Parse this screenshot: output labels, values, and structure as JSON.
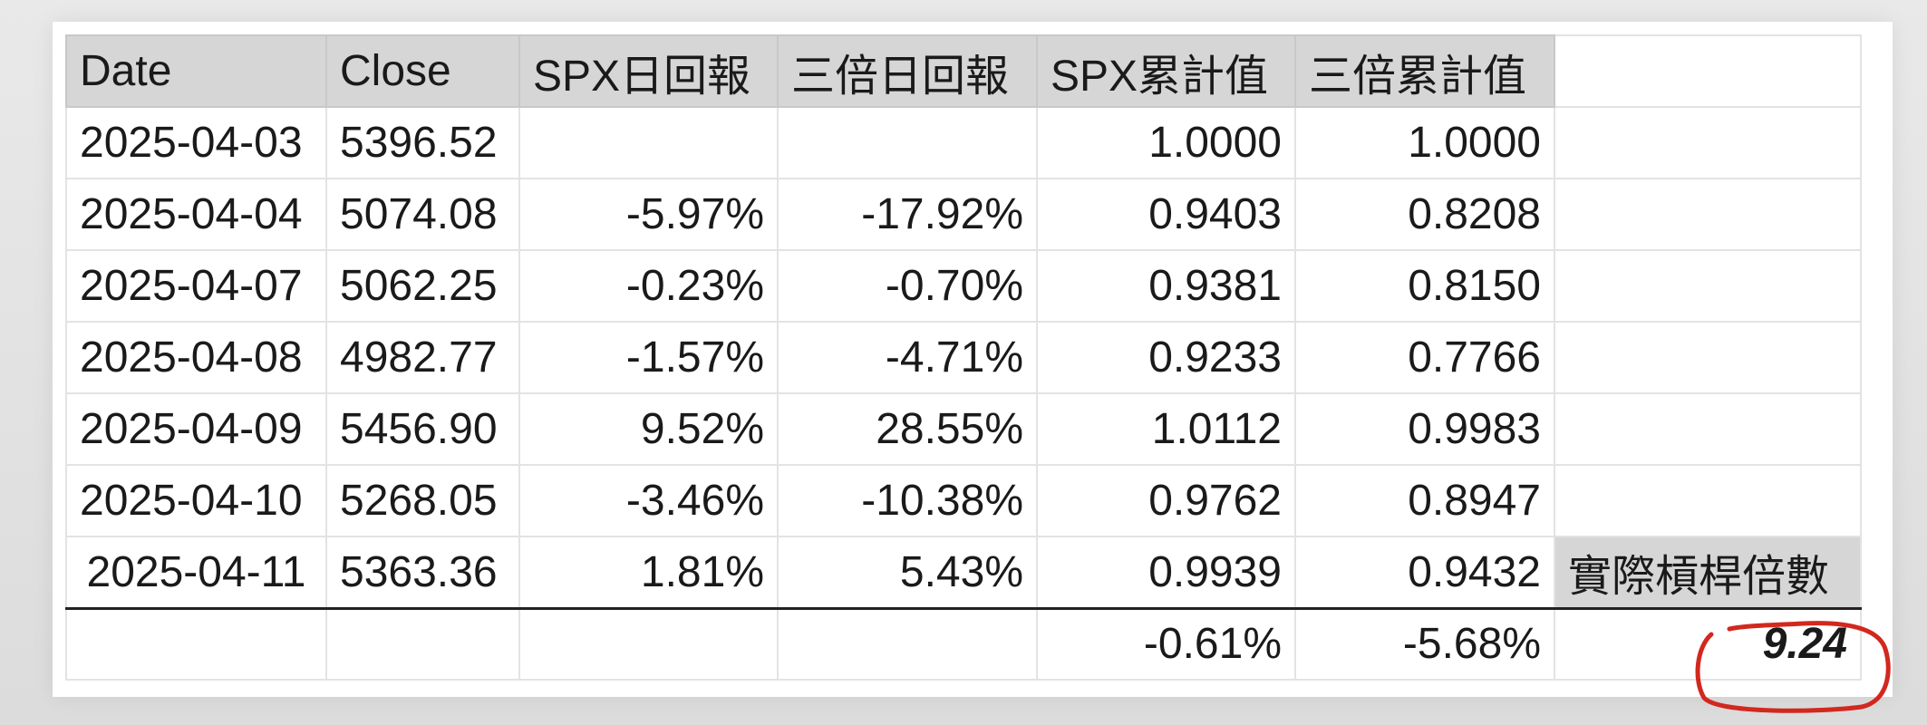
{
  "table": {
    "headers": [
      "Date",
      "Close",
      "SPX日回報",
      "三倍日回報",
      "SPX累計值",
      "三倍累計值",
      ""
    ],
    "rows": [
      {
        "date": "2025-04-03",
        "close": "5396.52",
        "spx_ret": "",
        "x3_ret": "",
        "spx_cum": "1.0000",
        "x3_cum": "1.0000",
        "extra": ""
      },
      {
        "date": "2025-04-04",
        "close": "5074.08",
        "spx_ret": "-5.97%",
        "x3_ret": "-17.92%",
        "spx_cum": "0.9403",
        "x3_cum": "0.8208",
        "extra": ""
      },
      {
        "date": "2025-04-07",
        "close": "5062.25",
        "spx_ret": "-0.23%",
        "x3_ret": "-0.70%",
        "spx_cum": "0.9381",
        "x3_cum": "0.8150",
        "extra": ""
      },
      {
        "date": "2025-04-08",
        "close": "4982.77",
        "spx_ret": "-1.57%",
        "x3_ret": "-4.71%",
        "spx_cum": "0.9233",
        "x3_cum": "0.7766",
        "extra": ""
      },
      {
        "date": "2025-04-09",
        "close": "5456.90",
        "spx_ret": "9.52%",
        "x3_ret": "28.55%",
        "spx_cum": "1.0112",
        "x3_cum": "0.9983",
        "extra": ""
      },
      {
        "date": "2025-04-10",
        "close": "5268.05",
        "spx_ret": "-3.46%",
        "x3_ret": "-10.38%",
        "spx_cum": "0.9762",
        "x3_cum": "0.8947",
        "extra": ""
      },
      {
        "date": "2025-04-11",
        "close": "5363.36",
        "spx_ret": "1.81%",
        "x3_ret": "5.43%",
        "spx_cum": "0.9939",
        "x3_cum": "0.9432",
        "extra": "實際槓桿倍數"
      }
    ],
    "summary": {
      "spx_cum": "-0.61%",
      "x3_cum": "-5.68%",
      "leverage": "9.24"
    }
  },
  "colors": {
    "header_bg": "#d6d6d6",
    "grid_line": "#e3e3e3",
    "annotation_circle": "#d2281e"
  },
  "icons": [
    "hand-drawn-circle-annotation"
  ]
}
